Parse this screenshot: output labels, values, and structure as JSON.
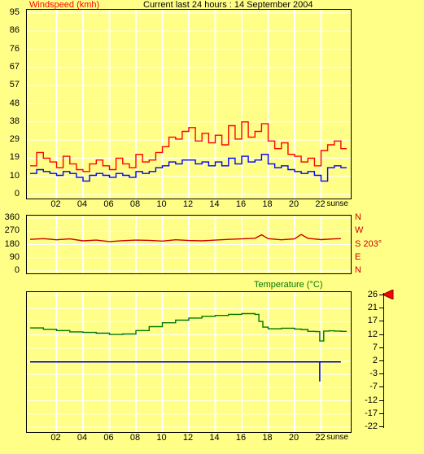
{
  "colors": {
    "background": "#ffff88",
    "grid": "#ffffff",
    "gust": "#ff0000",
    "average": "#0000ff",
    "direction": "#cc0000",
    "temperature": "#007700",
    "dew": "#0000aa",
    "pointer": "#ff0000",
    "axis_text": "#000000"
  },
  "header": {
    "title": "Current last 24 hours : 14 September 2004"
  },
  "chart_data": [
    {
      "type": "line",
      "panel": "windspeed",
      "ylabel": "Windspeed (kmh)",
      "y_ticks": [
        "95",
        "86",
        "76",
        "67",
        "57",
        "48",
        "38",
        "29",
        "19",
        "10",
        "0"
      ],
      "ylim": [
        0,
        95
      ],
      "x_ticks": [
        "02",
        "04",
        "06",
        "08",
        "10",
        "12",
        "14",
        "16",
        "18",
        "20",
        "22"
      ],
      "x_range_hours": [
        0,
        24
      ],
      "x_end_label": "sunse",
      "grid": true,
      "series": [
        {
          "role": "gust",
          "x": [
            0,
            0.5,
            1,
            1.5,
            2,
            2.5,
            3,
            3.5,
            4,
            4.5,
            5,
            5.5,
            6,
            6.5,
            7,
            7.5,
            8,
            8.5,
            9,
            9.5,
            10,
            10.5,
            11,
            11.5,
            12,
            12.5,
            13,
            13.5,
            14,
            14.5,
            15,
            15.5,
            16,
            16.5,
            17,
            17.5,
            18,
            18.5,
            19,
            19.5,
            20,
            20.5,
            21,
            21.5,
            22,
            22.5,
            23,
            23.5
          ],
          "values": [
            15,
            22,
            19,
            17,
            14,
            20,
            16,
            13,
            12,
            16,
            18,
            15,
            13,
            19,
            16,
            14,
            21,
            17,
            18,
            22,
            25,
            30,
            29,
            33,
            35,
            28,
            32,
            27,
            31,
            26,
            36,
            29,
            38,
            30,
            33,
            37,
            28,
            24,
            27,
            21,
            20,
            17,
            19,
            15,
            23,
            26,
            28,
            24
          ]
        },
        {
          "role": "average",
          "x": [
            0,
            0.5,
            1,
            1.5,
            2,
            2.5,
            3,
            3.5,
            4,
            4.5,
            5,
            5.5,
            6,
            6.5,
            7,
            7.5,
            8,
            8.5,
            9,
            9.5,
            10,
            10.5,
            11,
            11.5,
            12,
            12.5,
            13,
            13.5,
            14,
            14.5,
            15,
            15.5,
            16,
            16.5,
            17,
            17.5,
            18,
            18.5,
            19,
            19.5,
            20,
            20.5,
            21,
            21.5,
            22,
            22.5,
            23,
            23.5
          ],
          "values": [
            11,
            13,
            12,
            11,
            10,
            12,
            11,
            9,
            7,
            10,
            11,
            10,
            9,
            11,
            10,
            9,
            12,
            11,
            12,
            14,
            15,
            17,
            16,
            18,
            18,
            16,
            17,
            15,
            17,
            15,
            19,
            16,
            20,
            17,
            18,
            21,
            16,
            14,
            15,
            13,
            12,
            11,
            12,
            10,
            7,
            14,
            15,
            14
          ]
        }
      ]
    },
    {
      "type": "line",
      "panel": "wind-direction",
      "y_ticks": [
        "360",
        "270",
        "180",
        "90",
        "0"
      ],
      "ylim": [
        0,
        360
      ],
      "compass_labels": [
        "N",
        "W",
        "S 203°",
        "E",
        "N"
      ],
      "x_range_hours": [
        0,
        24
      ],
      "grid": true,
      "series": [
        {
          "role": "direction",
          "x": [
            0,
            1,
            2,
            3,
            4,
            5,
            6,
            7,
            8,
            9,
            10,
            11,
            12,
            13,
            14,
            15,
            16,
            17,
            17.5,
            18,
            19,
            20,
            20.5,
            21,
            22,
            23,
            23.5
          ],
          "values": [
            215,
            220,
            212,
            218,
            205,
            210,
            200,
            206,
            210,
            208,
            203,
            212,
            207,
            205,
            210,
            215,
            218,
            222,
            246,
            220,
            212,
            218,
            248,
            222,
            213,
            218,
            220
          ]
        }
      ]
    },
    {
      "type": "line",
      "panel": "temperature",
      "ylabel": "Temperature (°C)",
      "y_ticks": [
        "26",
        "21",
        "17",
        "12",
        "7",
        "2",
        "-3",
        "-7",
        "-12",
        "-17",
        "-22"
      ],
      "ylim": [
        -24.5,
        26
      ],
      "current_value": 26,
      "x_ticks": [
        "02",
        "04",
        "06",
        "08",
        "10",
        "12",
        "14",
        "16",
        "18",
        "20",
        "22"
      ],
      "x_range_hours": [
        0,
        24
      ],
      "x_end_label": "sunse",
      "grid": true,
      "series": [
        {
          "role": "temperature",
          "x": [
            0,
            1,
            2,
            3,
            4,
            5,
            6,
            7,
            8,
            9,
            10,
            11,
            12,
            13,
            14,
            15,
            16,
            17,
            17.3,
            17.6,
            18,
            19,
            20,
            20.5,
            21,
            21.6,
            21.9,
            22.2,
            22.6,
            23,
            23.5
          ],
          "values": [
            13.5,
            13,
            12.5,
            12,
            11.8,
            11.5,
            11,
            11.2,
            12.5,
            14,
            15.5,
            16.5,
            17.3,
            18,
            18.3,
            18.7,
            19,
            18.7,
            16,
            13.8,
            13.2,
            13.4,
            13.1,
            12.9,
            12.2,
            12.1,
            8.5,
            12.3,
            12.4,
            12.3,
            12.2
          ]
        },
        {
          "role": "dew",
          "x": [
            0,
            21.9,
            21.9,
            21.9,
            23.5
          ],
          "values": [
            0.5,
            0.5,
            -7,
            0.5,
            0.5
          ]
        }
      ]
    }
  ]
}
